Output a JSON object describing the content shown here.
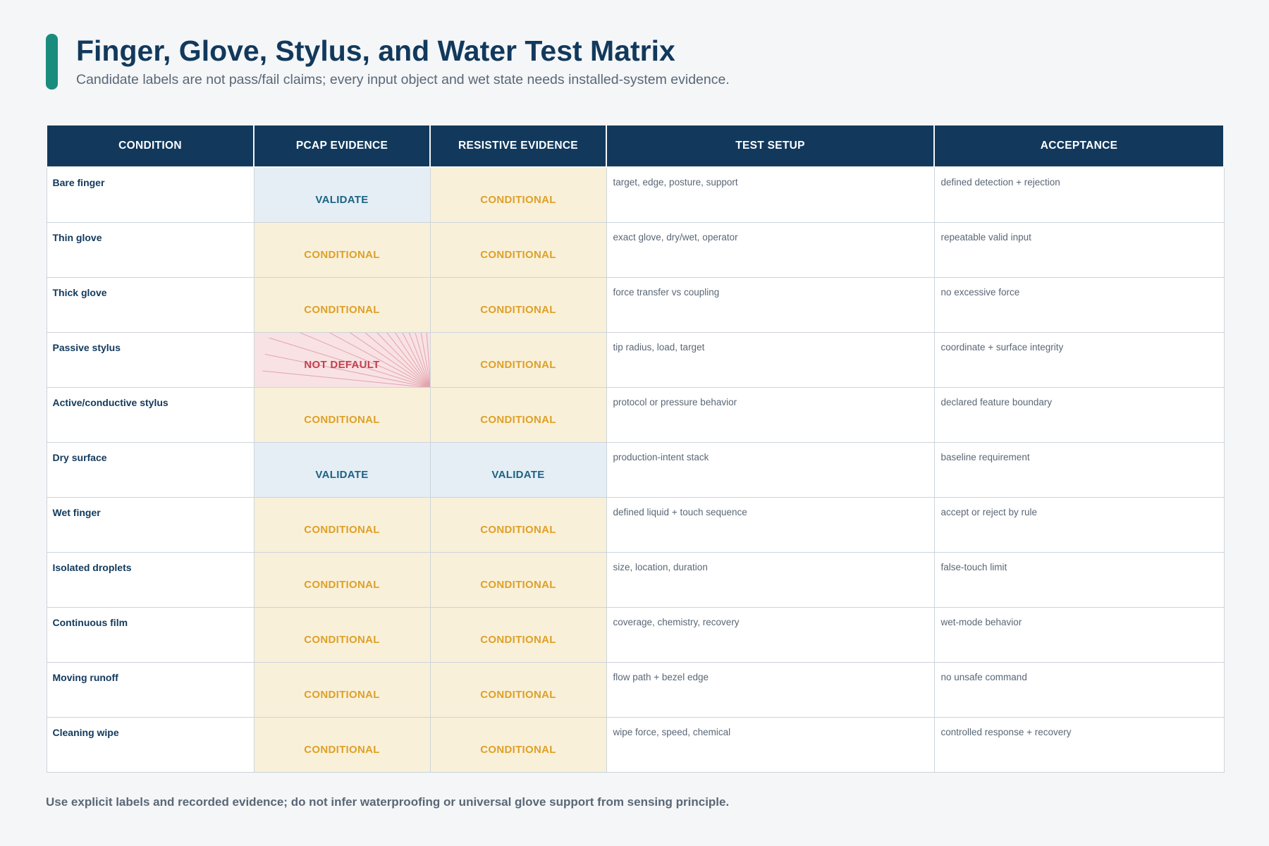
{
  "header": {
    "title": "Finger, Glove, Stylus, and Water Test Matrix",
    "subtitle": "Candidate labels are not pass/fail claims; every input object and wet state needs installed-system evidence."
  },
  "table": {
    "columns": [
      "CONDITION",
      "PCAP EVIDENCE",
      "RESISTIVE EVIDENCE",
      "TEST SETUP",
      "ACCEPTANCE"
    ],
    "rows": [
      {
        "condition": "Bare finger",
        "pcap": "VALIDATE",
        "resistive": "CONDITIONAL",
        "setup": "target, edge, posture, support",
        "acceptance": "defined detection + rejection"
      },
      {
        "condition": "Thin glove",
        "pcap": "CONDITIONAL",
        "resistive": "CONDITIONAL",
        "setup": "exact glove, dry/wet, operator",
        "acceptance": "repeatable valid input"
      },
      {
        "condition": "Thick glove",
        "pcap": "CONDITIONAL",
        "resistive": "CONDITIONAL",
        "setup": "force transfer vs coupling",
        "acceptance": "no excessive force"
      },
      {
        "condition": "Passive stylus",
        "pcap": "NOT DEFAULT",
        "resistive": "CONDITIONAL",
        "setup": "tip radius, load, target",
        "acceptance": "coordinate + surface integrity"
      },
      {
        "condition": "Active/conductive stylus",
        "pcap": "CONDITIONAL",
        "resistive": "CONDITIONAL",
        "setup": "protocol or pressure behavior",
        "acceptance": "declared feature boundary"
      },
      {
        "condition": "Dry surface",
        "pcap": "VALIDATE",
        "resistive": "VALIDATE",
        "setup": "production-intent stack",
        "acceptance": "baseline requirement"
      },
      {
        "condition": "Wet finger",
        "pcap": "CONDITIONAL",
        "resistive": "CONDITIONAL",
        "setup": "defined liquid + touch sequence",
        "acceptance": "accept or reject by rule"
      },
      {
        "condition": "Isolated droplets",
        "pcap": "CONDITIONAL",
        "resistive": "CONDITIONAL",
        "setup": "size, location, duration",
        "acceptance": "false-touch limit"
      },
      {
        "condition": "Continuous film",
        "pcap": "CONDITIONAL",
        "resistive": "CONDITIONAL",
        "setup": "coverage, chemistry, recovery",
        "acceptance": "wet-mode behavior"
      },
      {
        "condition": "Moving runoff",
        "pcap": "CONDITIONAL",
        "resistive": "CONDITIONAL",
        "setup": "flow path + bezel edge",
        "acceptance": "no unsafe command"
      },
      {
        "condition": "Cleaning wipe",
        "pcap": "CONDITIONAL",
        "resistive": "CONDITIONAL",
        "setup": "wipe force, speed, chemical",
        "acceptance": "controlled response + recovery"
      }
    ]
  },
  "footnote": "Use explicit labels and recorded evidence; do not infer waterproofing or universal glove support from sensing principle.",
  "colors": {
    "header_bg": "#12395c",
    "accent": "#1a8c7e",
    "validate_bg": "#e5eef5",
    "validate_text": "#1c6385",
    "conditional_bg": "#f9f0da",
    "conditional_text": "#dda129",
    "notdefault_bg": "#f8e2e4",
    "notdefault_text": "#c2414d"
  }
}
